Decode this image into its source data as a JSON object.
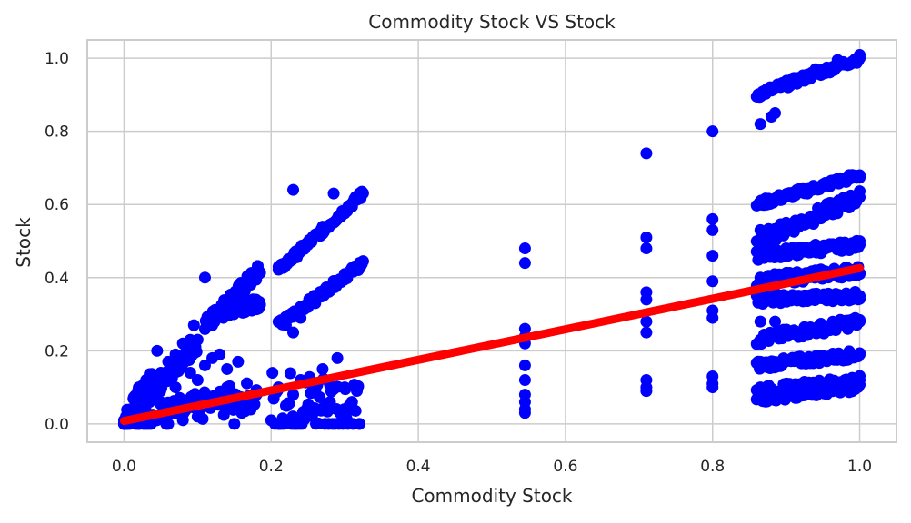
{
  "chart_data": {
    "type": "scatter",
    "title": "Commodity Stock VS Stock",
    "xlabel": "Commodity Stock",
    "ylabel": "Stock",
    "xlim": [
      -0.05,
      1.05
    ],
    "ylim": [
      -0.05,
      1.05
    ],
    "x_ticks": [
      "0.0",
      "0.2",
      "0.4",
      "0.6",
      "0.8",
      "1.0"
    ],
    "y_ticks": [
      "0.0",
      "0.2",
      "0.4",
      "0.6",
      "0.8",
      "1.0"
    ],
    "grid": true,
    "legend": "none",
    "colors": {
      "points": "#0000ff",
      "fit_line": "#ff0000",
      "grid": "#cccccc",
      "frame": "#cccccc",
      "text": "#262626"
    },
    "series": [
      {
        "kind": "points",
        "points": [
          [
            0.0,
            0.0
          ],
          [
            0.005,
            0.01
          ],
          [
            0.01,
            0.02
          ],
          [
            0.015,
            0.03
          ],
          [
            0.02,
            0.04
          ],
          [
            0.025,
            0.05
          ],
          [
            0.03,
            0.06
          ],
          [
            0.035,
            0.08
          ],
          [
            0.04,
            0.1
          ],
          [
            0.045,
            0.12
          ],
          [
            0.05,
            0.14
          ],
          [
            0.06,
            0.17
          ],
          [
            0.07,
            0.19
          ],
          [
            0.08,
            0.22
          ],
          [
            0.09,
            0.23
          ],
          [
            0.095,
            0.27
          ],
          [
            0.045,
            0.2
          ],
          [
            0.02,
            0.1
          ],
          [
            0.03,
            0.12
          ],
          [
            0.05,
            0.06
          ],
          [
            0.06,
            0.03
          ],
          [
            0.07,
            0.1
          ],
          [
            0.08,
            0.06
          ],
          [
            0.09,
            0.14
          ],
          [
            0.1,
            0.12
          ],
          [
            0.1,
            0.02
          ],
          [
            0.12,
            0.05
          ],
          [
            0.13,
            0.08
          ],
          [
            0.14,
            0.1
          ],
          [
            0.15,
            0.05
          ],
          [
            0.16,
            0.03
          ],
          [
            0.17,
            0.06
          ],
          [
            0.18,
            0.08
          ],
          [
            0.15,
            0.0
          ],
          [
            0.11,
            0.16
          ],
          [
            0.12,
            0.18
          ],
          [
            0.13,
            0.19
          ],
          [
            0.14,
            0.15
          ],
          [
            0.155,
            0.17
          ],
          [
            0.02,
            0.0
          ],
          [
            0.04,
            0.02
          ],
          [
            0.06,
            0.0
          ],
          [
            0.08,
            0.01
          ],
          [
            0.11,
            0.4
          ],
          [
            0.12,
            0.27
          ],
          [
            0.135,
            0.29
          ],
          [
            0.15,
            0.31
          ],
          [
            0.165,
            0.33
          ],
          [
            0.18,
            0.33
          ],
          [
            0.12,
            0.28
          ],
          [
            0.13,
            0.3
          ],
          [
            0.14,
            0.32
          ],
          [
            0.15,
            0.34
          ],
          [
            0.16,
            0.37
          ],
          [
            0.17,
            0.39
          ],
          [
            0.18,
            0.42
          ],
          [
            0.21,
            0.0
          ],
          [
            0.21,
            0.1
          ],
          [
            0.22,
            0.05
          ],
          [
            0.23,
            0.08
          ],
          [
            0.24,
            0.12
          ],
          [
            0.25,
            0.03
          ],
          [
            0.26,
            0.09
          ],
          [
            0.27,
            0.15
          ],
          [
            0.28,
            0.06
          ],
          [
            0.29,
            0.18
          ],
          [
            0.3,
            0.1
          ],
          [
            0.31,
            0.06
          ],
          [
            0.32,
            0.0
          ],
          [
            0.3,
            0.02
          ],
          [
            0.22,
            0.27
          ],
          [
            0.24,
            0.29
          ],
          [
            0.26,
            0.33
          ],
          [
            0.28,
            0.37
          ],
          [
            0.3,
            0.41
          ],
          [
            0.32,
            0.44
          ],
          [
            0.21,
            0.43
          ],
          [
            0.23,
            0.46
          ],
          [
            0.25,
            0.49
          ],
          [
            0.27,
            0.52
          ],
          [
            0.29,
            0.56
          ],
          [
            0.31,
            0.6
          ],
          [
            0.32,
            0.63
          ],
          [
            0.23,
            0.64
          ],
          [
            0.285,
            0.63
          ],
          [
            0.23,
            0.25
          ],
          [
            0.24,
            0.32
          ],
          [
            0.545,
            0.48
          ],
          [
            0.545,
            0.44
          ],
          [
            0.545,
            0.26
          ],
          [
            0.545,
            0.24
          ],
          [
            0.545,
            0.22
          ],
          [
            0.545,
            0.16
          ],
          [
            0.545,
            0.12
          ],
          [
            0.545,
            0.08
          ],
          [
            0.545,
            0.06
          ],
          [
            0.545,
            0.04
          ],
          [
            0.545,
            0.03
          ],
          [
            0.71,
            0.74
          ],
          [
            0.71,
            0.51
          ],
          [
            0.71,
            0.48
          ],
          [
            0.71,
            0.36
          ],
          [
            0.71,
            0.34
          ],
          [
            0.71,
            0.28
          ],
          [
            0.71,
            0.25
          ],
          [
            0.71,
            0.12
          ],
          [
            0.71,
            0.1
          ],
          [
            0.71,
            0.09
          ],
          [
            0.8,
            0.8
          ],
          [
            0.8,
            0.56
          ],
          [
            0.8,
            0.53
          ],
          [
            0.8,
            0.46
          ],
          [
            0.8,
            0.39
          ],
          [
            0.8,
            0.31
          ],
          [
            0.8,
            0.29
          ],
          [
            0.8,
            0.13
          ],
          [
            0.8,
            0.11
          ],
          [
            0.8,
            0.1
          ],
          [
            0.865,
            0.82
          ],
          [
            0.88,
            0.84
          ],
          [
            0.885,
            0.85
          ],
          [
            0.865,
            0.9
          ],
          [
            0.9,
            0.93
          ],
          [
            0.94,
            0.97
          ],
          [
            0.97,
            0.995
          ],
          [
            1.0,
            1.0
          ],
          [
            0.865,
            0.6
          ],
          [
            0.89,
            0.62
          ],
          [
            0.93,
            0.645
          ],
          [
            0.97,
            0.67
          ],
          [
            1.0,
            0.68
          ],
          [
            0.865,
            0.53
          ],
          [
            0.9,
            0.55
          ],
          [
            0.94,
            0.57
          ],
          [
            0.98,
            0.6
          ],
          [
            1.0,
            0.62
          ],
          [
            0.865,
            0.47
          ],
          [
            0.9,
            0.48
          ],
          [
            0.94,
            0.49
          ],
          [
            0.98,
            0.495
          ],
          [
            1.0,
            0.49
          ],
          [
            0.865,
            0.4
          ],
          [
            0.9,
            0.41
          ],
          [
            0.94,
            0.42
          ],
          [
            0.98,
            0.425
          ],
          [
            1.0,
            0.41
          ],
          [
            0.865,
            0.34
          ],
          [
            0.9,
            0.35
          ],
          [
            0.94,
            0.35
          ],
          [
            0.98,
            0.35
          ],
          [
            1.0,
            0.35
          ],
          [
            0.865,
            0.28
          ],
          [
            0.885,
            0.28
          ],
          [
            0.865,
            0.23
          ],
          [
            0.9,
            0.245
          ],
          [
            0.94,
            0.26
          ],
          [
            0.98,
            0.27
          ],
          [
            1.0,
            0.28
          ],
          [
            0.865,
            0.17
          ],
          [
            0.9,
            0.175
          ],
          [
            0.94,
            0.18
          ],
          [
            0.98,
            0.185
          ],
          [
            1.0,
            0.19
          ],
          [
            0.865,
            0.1
          ],
          [
            0.9,
            0.105
          ],
          [
            0.94,
            0.11
          ],
          [
            0.98,
            0.115
          ],
          [
            1.0,
            0.12
          ],
          [
            0.865,
            0.07
          ],
          [
            0.9,
            0.08
          ],
          [
            0.94,
            0.09
          ],
          [
            0.98,
            0.1
          ]
        ],
        "bands": [
          {
            "from": [
              0.0,
              0.0
            ],
            "to": [
              0.04,
              0.12
            ],
            "spread": 0.035
          },
          {
            "from": [
              0.0,
              0.0
            ],
            "to": [
              0.1,
              0.22
            ],
            "spread": 0.02
          },
          {
            "from": [
              0.0,
              0.0
            ],
            "to": [
              0.18,
              0.08
            ],
            "spread": 0.04
          },
          {
            "from": [
              0.11,
              0.27
            ],
            "to": [
              0.185,
              0.42
            ],
            "spread": 0.02
          },
          {
            "from": [
              0.12,
              0.3
            ],
            "to": [
              0.185,
              0.33
            ],
            "spread": 0.015
          },
          {
            "from": [
              0.2,
              0.05
            ],
            "to": [
              0.32,
              0.05
            ],
            "spread": 0.1
          },
          {
            "from": [
              0.21,
              0.27
            ],
            "to": [
              0.325,
              0.44
            ],
            "spread": 0.01
          },
          {
            "from": [
              0.21,
              0.42
            ],
            "to": [
              0.325,
              0.63
            ],
            "spread": 0.01
          },
          {
            "from": [
              0.86,
              0.9
            ],
            "to": [
              1.0,
              1.0
            ],
            "spread": 0.01
          },
          {
            "from": [
              0.86,
              0.6
            ],
            "to": [
              1.0,
              0.68
            ],
            "spread": 0.01
          },
          {
            "from": [
              0.86,
              0.5
            ],
            "to": [
              1.0,
              0.62
            ],
            "spread": 0.02
          },
          {
            "from": [
              0.86,
              0.46
            ],
            "to": [
              1.0,
              0.49
            ],
            "spread": 0.012
          },
          {
            "from": [
              0.86,
              0.39
            ],
            "to": [
              1.0,
              0.42
            ],
            "spread": 0.015
          },
          {
            "from": [
              0.86,
              0.34
            ],
            "to": [
              1.0,
              0.35
            ],
            "spread": 0.012
          },
          {
            "from": [
              0.86,
              0.23
            ],
            "to": [
              1.0,
              0.28
            ],
            "spread": 0.015
          },
          {
            "from": [
              0.86,
              0.16
            ],
            "to": [
              1.0,
              0.19
            ],
            "spread": 0.012
          },
          {
            "from": [
              0.86,
              0.09
            ],
            "to": [
              1.0,
              0.12
            ],
            "spread": 0.012
          },
          {
            "from": [
              0.86,
              0.07
            ],
            "to": [
              1.0,
              0.1
            ],
            "spread": 0.012
          }
        ]
      },
      {
        "kind": "fit_line",
        "x": [
          0.0,
          1.0
        ],
        "y": [
          0.008,
          0.426
        ]
      }
    ]
  }
}
